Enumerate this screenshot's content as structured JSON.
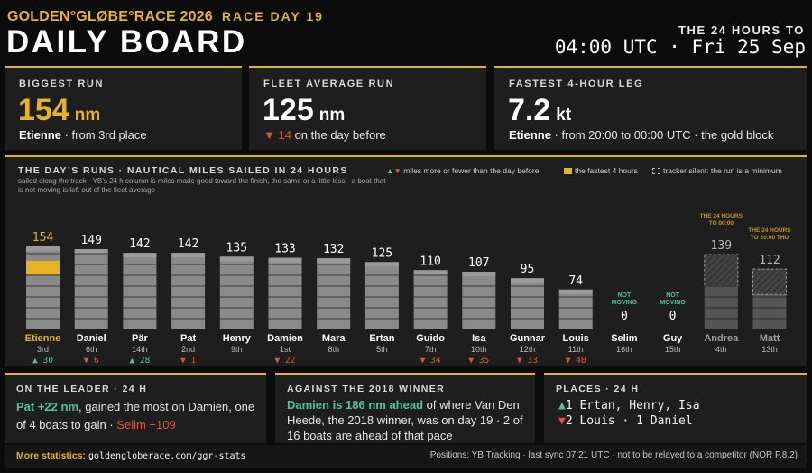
{
  "header": {
    "brand": "GOLDEN°GLØBE°RACE 2026",
    "race_day": "RACE DAY 19",
    "title": "DAILY BOARD",
    "window_label": "THE 24 HOURS TO",
    "window_time": "04:00 UTC · Fri 25 Sep"
  },
  "stats": {
    "biggest": {
      "label": "BIGGEST RUN",
      "value": "154",
      "unit": "nm",
      "who": "Etienne",
      "detail": " · from 3rd place"
    },
    "average": {
      "label": "FLEET AVERAGE RUN",
      "value": "125",
      "unit": "nm",
      "change": "▼ 14",
      "detail": " on the day before"
    },
    "fastest": {
      "label": "FASTEST 4-HOUR LEG",
      "value": "7.2",
      "unit": "kt",
      "who": "Etienne",
      "detail": " · from 20:00 to 00:00 UTC · the gold block"
    }
  },
  "chart_panel": {
    "title": "THE DAY’S RUNS · NAUTICAL MILES SAILED IN 24 HOURS",
    "description": "sailed along the track · YB’s 24 h column is miles made good toward the finish, the same or a little less · a boat that is not moving is left out of the fleet average",
    "legend_change": "miles more or fewer than the day before",
    "legend_gold": "the fastest 4 hours",
    "legend_silent": "tracker silent: the run is a minimum"
  },
  "chart_data": {
    "type": "bar",
    "categories": [
      "Etienne",
      "Daniel",
      "Pär",
      "Pat",
      "Henry",
      "Damien",
      "Mara",
      "Ertan",
      "Guido",
      "Isa",
      "Gunnar",
      "Louis",
      "Selim",
      "Guy",
      "Andrea",
      "Matt"
    ],
    "values": [
      154,
      149,
      142,
      142,
      135,
      133,
      132,
      125,
      110,
      107,
      95,
      74,
      0,
      0,
      139,
      112
    ],
    "places": [
      "3rd",
      "6th",
      "14th",
      "2nd",
      "9th",
      "1st",
      "8th",
      "5th",
      "7th",
      "10th",
      "12th",
      "11th",
      "16th",
      "15th",
      "4th",
      "13th"
    ],
    "changes": [
      "▲ 30",
      "▼ 6",
      "▲ 28",
      "▼ 1",
      "",
      "▼ 22",
      "",
      "",
      "▼ 34",
      "▼ 35",
      "▼ 33",
      "▼ 40",
      "",
      "",
      "",
      ""
    ],
    "not_moving": [
      false,
      false,
      false,
      false,
      false,
      false,
      false,
      false,
      false,
      false,
      false,
      false,
      true,
      true,
      false,
      false
    ],
    "not_moving_label": "NOT MOVING",
    "tracker_silent": [
      false,
      false,
      false,
      false,
      false,
      false,
      false,
      false,
      false,
      false,
      false,
      false,
      false,
      false,
      true,
      true
    ],
    "silent_notes": {
      "Andrea": "THE 24 HOURS TO 00:00",
      "Matt": "THE 24 HOURS TO 20:00 THU"
    },
    "highlight": "Etienne",
    "gold_block": {
      "boat": "Etienne",
      "note": "fastest 4-hour leg"
    },
    "colors": {
      "gold": "#e6b325",
      "bar": "#8a8a8a",
      "silent": "#555555",
      "up": "#4fc3a1",
      "down": "#e0533d"
    }
  },
  "bottom": {
    "leader": {
      "label": "ON THE LEADER · 24 H",
      "hl": "Pat +22 nm",
      "text1": ", gained the most on Damien, one of 4 boats to gain · ",
      "neg": "Selim −109"
    },
    "winner": {
      "label": "AGAINST THE 2018 WINNER",
      "hl": "Damien is 186 nm ahead",
      "text": " of where Van Den Heede, the 2018 winner, was on day 19 · 2 of 16 boats are ahead of that pace"
    },
    "places": {
      "label": "PLACES · 24 H",
      "up_arrow": "▲",
      "up": "1 Ertan, Henry, Isa",
      "down_arrow": "▼",
      "down": "2 Louis · 1 Daniel"
    }
  },
  "footer": {
    "more_label": "More statistics:",
    "more_link": "goldengloberace.com/ggr-stats",
    "note": "Positions: YB Tracking · last sync 07:21 UTC · not to be relayed to a competitor (NOR F.8.2)"
  }
}
